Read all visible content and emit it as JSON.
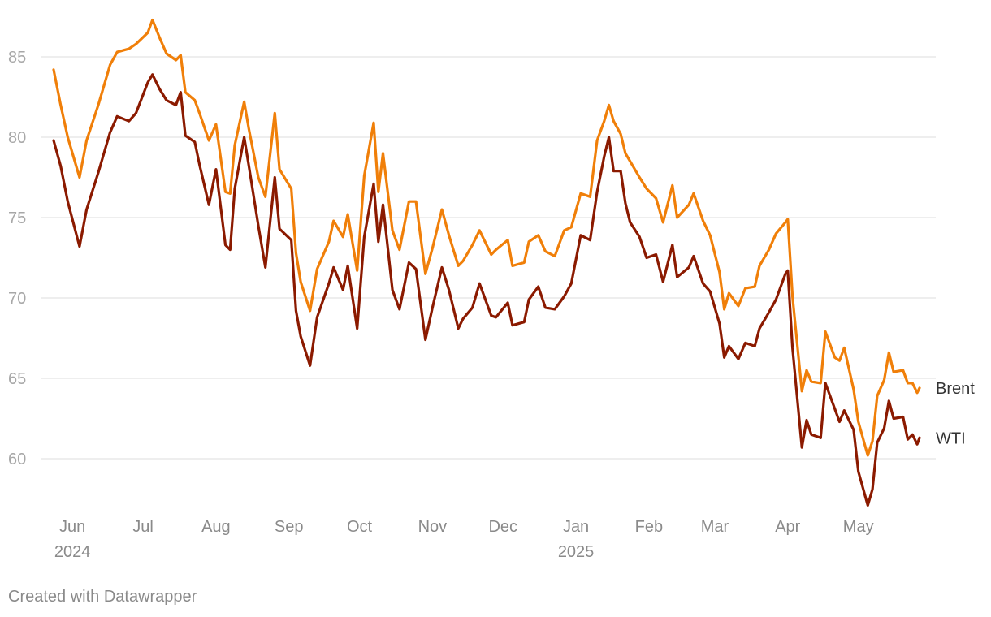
{
  "chart_data": {
    "type": "line",
    "title": "",
    "xlabel": "",
    "ylabel": "",
    "ylim": [
      57,
      87
    ],
    "y_ticks": [
      60,
      65,
      70,
      75,
      80,
      85
    ],
    "x_domain": [
      "2024-05-24",
      "2025-05-27"
    ],
    "x_ticks": [
      {
        "date": "2024-06-01",
        "label": "Jun",
        "year": "2024"
      },
      {
        "date": "2024-07-01",
        "label": "Jul",
        "year": ""
      },
      {
        "date": "2024-08-01",
        "label": "Aug",
        "year": ""
      },
      {
        "date": "2024-09-01",
        "label": "Sep",
        "year": ""
      },
      {
        "date": "2024-10-01",
        "label": "Oct",
        "year": ""
      },
      {
        "date": "2024-11-01",
        "label": "Nov",
        "year": ""
      },
      {
        "date": "2024-12-01",
        "label": "Dec",
        "year": ""
      },
      {
        "date": "2025-01-01",
        "label": "Jan",
        "year": "2025"
      },
      {
        "date": "2025-02-01",
        "label": "Feb",
        "year": ""
      },
      {
        "date": "2025-03-01",
        "label": "Mar",
        "year": ""
      },
      {
        "date": "2025-04-01",
        "label": "Apr",
        "year": ""
      },
      {
        "date": "2025-05-01",
        "label": "May",
        "year": ""
      }
    ],
    "series": [
      {
        "name": "Brent",
        "color": "#f07f09",
        "points": [
          [
            "2024-05-24",
            84.2
          ],
          [
            "2024-05-27",
            82.0
          ],
          [
            "2024-05-30",
            80.0
          ],
          [
            "2024-06-04",
            77.5
          ],
          [
            "2024-06-07",
            79.8
          ],
          [
            "2024-06-12",
            82.0
          ],
          [
            "2024-06-17",
            84.5
          ],
          [
            "2024-06-20",
            85.3
          ],
          [
            "2024-06-25",
            85.5
          ],
          [
            "2024-06-28",
            85.8
          ],
          [
            "2024-07-03",
            86.5
          ],
          [
            "2024-07-05",
            87.3
          ],
          [
            "2024-07-08",
            86.2
          ],
          [
            "2024-07-11",
            85.2
          ],
          [
            "2024-07-15",
            84.8
          ],
          [
            "2024-07-17",
            85.1
          ],
          [
            "2024-07-19",
            82.8
          ],
          [
            "2024-07-23",
            82.3
          ],
          [
            "2024-07-25",
            81.5
          ],
          [
            "2024-07-29",
            79.8
          ],
          [
            "2024-08-01",
            80.8
          ],
          [
            "2024-08-05",
            76.6
          ],
          [
            "2024-08-07",
            76.5
          ],
          [
            "2024-08-09",
            79.5
          ],
          [
            "2024-08-13",
            82.2
          ],
          [
            "2024-08-15",
            80.5
          ],
          [
            "2024-08-19",
            77.5
          ],
          [
            "2024-08-22",
            76.3
          ],
          [
            "2024-08-26",
            81.5
          ],
          [
            "2024-08-28",
            78.0
          ],
          [
            "2024-09-02",
            76.8
          ],
          [
            "2024-09-04",
            72.8
          ],
          [
            "2024-09-06",
            71.0
          ],
          [
            "2024-09-10",
            69.2
          ],
          [
            "2024-09-13",
            71.8
          ],
          [
            "2024-09-18",
            73.5
          ],
          [
            "2024-09-20",
            74.8
          ],
          [
            "2024-09-24",
            73.8
          ],
          [
            "2024-09-26",
            75.2
          ],
          [
            "2024-09-30",
            71.7
          ],
          [
            "2024-10-03",
            77.6
          ],
          [
            "2024-10-07",
            80.9
          ],
          [
            "2024-10-09",
            76.6
          ],
          [
            "2024-10-11",
            79.0
          ],
          [
            "2024-10-15",
            74.2
          ],
          [
            "2024-10-18",
            73.0
          ],
          [
            "2024-10-22",
            76.0
          ],
          [
            "2024-10-25",
            76.0
          ],
          [
            "2024-10-29",
            71.5
          ],
          [
            "2024-11-01",
            73.1
          ],
          [
            "2024-11-05",
            75.5
          ],
          [
            "2024-11-08",
            73.9
          ],
          [
            "2024-11-12",
            72.0
          ],
          [
            "2024-11-14",
            72.3
          ],
          [
            "2024-11-18",
            73.3
          ],
          [
            "2024-11-21",
            74.2
          ],
          [
            "2024-11-26",
            72.7
          ],
          [
            "2024-11-28",
            73.0
          ],
          [
            "2024-12-03",
            73.6
          ],
          [
            "2024-12-05",
            72.0
          ],
          [
            "2024-12-10",
            72.2
          ],
          [
            "2024-12-12",
            73.5
          ],
          [
            "2024-12-16",
            73.9
          ],
          [
            "2024-12-19",
            72.9
          ],
          [
            "2024-12-23",
            72.6
          ],
          [
            "2024-12-27",
            74.2
          ],
          [
            "2024-12-30",
            74.4
          ],
          [
            "2025-01-03",
            76.5
          ],
          [
            "2025-01-07",
            76.3
          ],
          [
            "2025-01-10",
            79.8
          ],
          [
            "2025-01-13",
            81.0
          ],
          [
            "2025-01-15",
            82.0
          ],
          [
            "2025-01-17",
            81.0
          ],
          [
            "2025-01-20",
            80.2
          ],
          [
            "2025-01-22",
            79.0
          ],
          [
            "2025-01-24",
            78.5
          ],
          [
            "2025-01-28",
            77.5
          ],
          [
            "2025-01-31",
            76.8
          ],
          [
            "2025-02-04",
            76.2
          ],
          [
            "2025-02-07",
            74.7
          ],
          [
            "2025-02-11",
            77.0
          ],
          [
            "2025-02-13",
            75.0
          ],
          [
            "2025-02-18",
            75.8
          ],
          [
            "2025-02-20",
            76.5
          ],
          [
            "2025-02-24",
            74.8
          ],
          [
            "2025-02-27",
            73.9
          ],
          [
            "2025-03-03",
            71.6
          ],
          [
            "2025-03-05",
            69.3
          ],
          [
            "2025-03-07",
            70.3
          ],
          [
            "2025-03-11",
            69.5
          ],
          [
            "2025-03-14",
            70.6
          ],
          [
            "2025-03-18",
            70.7
          ],
          [
            "2025-03-20",
            72.0
          ],
          [
            "2025-03-24",
            73.0
          ],
          [
            "2025-03-27",
            74.0
          ],
          [
            "2025-03-31",
            74.7
          ],
          [
            "2025-04-01",
            74.9
          ],
          [
            "2025-04-03",
            70.1
          ],
          [
            "2025-04-07",
            64.2
          ],
          [
            "2025-04-09",
            65.5
          ],
          [
            "2025-04-11",
            64.8
          ],
          [
            "2025-04-15",
            64.7
          ],
          [
            "2025-04-17",
            67.9
          ],
          [
            "2025-04-21",
            66.3
          ],
          [
            "2025-04-23",
            66.1
          ],
          [
            "2025-04-25",
            66.9
          ],
          [
            "2025-04-29",
            64.3
          ],
          [
            "2025-05-01",
            62.3
          ],
          [
            "2025-05-05",
            60.2
          ],
          [
            "2025-05-07",
            61.1
          ],
          [
            "2025-05-09",
            63.9
          ],
          [
            "2025-05-12",
            64.9
          ],
          [
            "2025-05-14",
            66.6
          ],
          [
            "2025-05-16",
            65.4
          ],
          [
            "2025-05-20",
            65.5
          ],
          [
            "2025-05-22",
            64.7
          ],
          [
            "2025-05-24",
            64.7
          ],
          [
            "2025-05-26",
            64.1
          ],
          [
            "2025-05-27",
            64.4
          ]
        ]
      },
      {
        "name": "WTI",
        "color": "#8b1a00",
        "points": [
          [
            "2024-05-24",
            79.8
          ],
          [
            "2024-05-27",
            78.2
          ],
          [
            "2024-05-30",
            76.0
          ],
          [
            "2024-06-04",
            73.2
          ],
          [
            "2024-06-07",
            75.5
          ],
          [
            "2024-06-12",
            77.8
          ],
          [
            "2024-06-17",
            80.3
          ],
          [
            "2024-06-20",
            81.3
          ],
          [
            "2024-06-25",
            81.0
          ],
          [
            "2024-06-28",
            81.5
          ],
          [
            "2024-07-03",
            83.4
          ],
          [
            "2024-07-05",
            83.9
          ],
          [
            "2024-07-08",
            83.0
          ],
          [
            "2024-07-11",
            82.3
          ],
          [
            "2024-07-15",
            82.0
          ],
          [
            "2024-07-17",
            82.8
          ],
          [
            "2024-07-19",
            80.1
          ],
          [
            "2024-07-23",
            79.7
          ],
          [
            "2024-07-25",
            78.3
          ],
          [
            "2024-07-29",
            75.8
          ],
          [
            "2024-08-01",
            78.0
          ],
          [
            "2024-08-05",
            73.3
          ],
          [
            "2024-08-07",
            73.0
          ],
          [
            "2024-08-09",
            76.8
          ],
          [
            "2024-08-13",
            80.0
          ],
          [
            "2024-08-15",
            78.2
          ],
          [
            "2024-08-19",
            74.5
          ],
          [
            "2024-08-22",
            71.9
          ],
          [
            "2024-08-26",
            77.5
          ],
          [
            "2024-08-28",
            74.3
          ],
          [
            "2024-09-02",
            73.6
          ],
          [
            "2024-09-04",
            69.2
          ],
          [
            "2024-09-06",
            67.6
          ],
          [
            "2024-09-10",
            65.8
          ],
          [
            "2024-09-13",
            68.8
          ],
          [
            "2024-09-18",
            70.9
          ],
          [
            "2024-09-20",
            71.9
          ],
          [
            "2024-09-24",
            70.5
          ],
          [
            "2024-09-26",
            72.0
          ],
          [
            "2024-09-30",
            68.1
          ],
          [
            "2024-10-03",
            73.8
          ],
          [
            "2024-10-07",
            77.1
          ],
          [
            "2024-10-09",
            73.5
          ],
          [
            "2024-10-11",
            75.8
          ],
          [
            "2024-10-15",
            70.5
          ],
          [
            "2024-10-18",
            69.3
          ],
          [
            "2024-10-22",
            72.2
          ],
          [
            "2024-10-25",
            71.8
          ],
          [
            "2024-10-29",
            67.4
          ],
          [
            "2024-11-01",
            69.4
          ],
          [
            "2024-11-05",
            71.9
          ],
          [
            "2024-11-08",
            70.5
          ],
          [
            "2024-11-12",
            68.1
          ],
          [
            "2024-11-14",
            68.7
          ],
          [
            "2024-11-18",
            69.4
          ],
          [
            "2024-11-21",
            70.9
          ],
          [
            "2024-11-26",
            68.9
          ],
          [
            "2024-11-28",
            68.8
          ],
          [
            "2024-12-03",
            69.7
          ],
          [
            "2024-12-05",
            68.3
          ],
          [
            "2024-12-10",
            68.5
          ],
          [
            "2024-12-12",
            69.9
          ],
          [
            "2024-12-16",
            70.7
          ],
          [
            "2024-12-19",
            69.4
          ],
          [
            "2024-12-23",
            69.3
          ],
          [
            "2024-12-27",
            70.1
          ],
          [
            "2024-12-30",
            70.9
          ],
          [
            "2025-01-03",
            73.9
          ],
          [
            "2025-01-07",
            73.6
          ],
          [
            "2025-01-10",
            76.6
          ],
          [
            "2025-01-13",
            78.8
          ],
          [
            "2025-01-15",
            80.0
          ],
          [
            "2025-01-17",
            77.9
          ],
          [
            "2025-01-20",
            77.9
          ],
          [
            "2025-01-22",
            75.9
          ],
          [
            "2025-01-24",
            74.7
          ],
          [
            "2025-01-28",
            73.8
          ],
          [
            "2025-01-31",
            72.5
          ],
          [
            "2025-02-04",
            72.7
          ],
          [
            "2025-02-07",
            71.0
          ],
          [
            "2025-02-11",
            73.3
          ],
          [
            "2025-02-13",
            71.3
          ],
          [
            "2025-02-18",
            71.9
          ],
          [
            "2025-02-20",
            72.6
          ],
          [
            "2025-02-24",
            70.9
          ],
          [
            "2025-02-27",
            70.4
          ],
          [
            "2025-03-03",
            68.4
          ],
          [
            "2025-03-05",
            66.3
          ],
          [
            "2025-03-07",
            67.0
          ],
          [
            "2025-03-11",
            66.2
          ],
          [
            "2025-03-14",
            67.2
          ],
          [
            "2025-03-18",
            67.0
          ],
          [
            "2025-03-20",
            68.1
          ],
          [
            "2025-03-24",
            69.1
          ],
          [
            "2025-03-27",
            69.9
          ],
          [
            "2025-03-31",
            71.5
          ],
          [
            "2025-04-01",
            71.7
          ],
          [
            "2025-04-03",
            66.9
          ],
          [
            "2025-04-07",
            60.7
          ],
          [
            "2025-04-09",
            62.4
          ],
          [
            "2025-04-11",
            61.5
          ],
          [
            "2025-04-15",
            61.3
          ],
          [
            "2025-04-17",
            64.7
          ],
          [
            "2025-04-21",
            63.1
          ],
          [
            "2025-04-23",
            62.3
          ],
          [
            "2025-04-25",
            63.0
          ],
          [
            "2025-04-29",
            61.8
          ],
          [
            "2025-05-01",
            59.2
          ],
          [
            "2025-05-05",
            57.1
          ],
          [
            "2025-05-07",
            58.1
          ],
          [
            "2025-05-09",
            61.0
          ],
          [
            "2025-05-12",
            61.9
          ],
          [
            "2025-05-14",
            63.6
          ],
          [
            "2025-05-16",
            62.5
          ],
          [
            "2025-05-20",
            62.6
          ],
          [
            "2025-05-22",
            61.2
          ],
          [
            "2025-05-24",
            61.5
          ],
          [
            "2025-05-26",
            60.9
          ],
          [
            "2025-05-27",
            61.3
          ]
        ]
      }
    ]
  },
  "credit": "Created with Datawrapper"
}
